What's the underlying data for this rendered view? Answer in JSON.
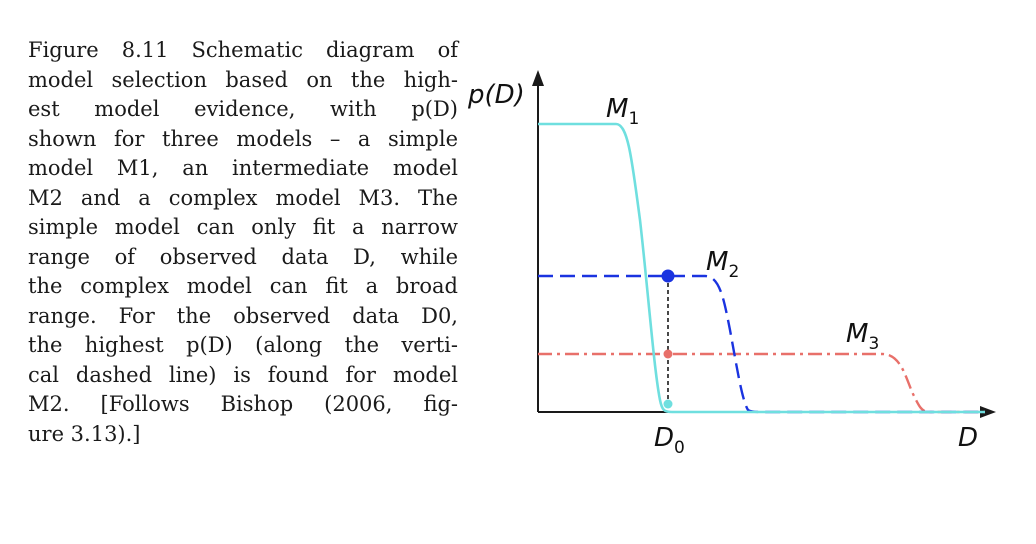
{
  "caption": {
    "lines": [
      "Figure 8.11 Schematic diagram of",
      "model selection based on the high-",
      "est model evidence, with p(D)",
      "shown for three models – a simple",
      "model M1, an intermediate model",
      "M2 and a complex model M3. The",
      "simple model can only fit a narrow",
      "range of observed data D, while",
      "the complex model can fit a broad",
      "range. For the observed data D0,",
      "the highest p(D) (along the verti-",
      "cal dashed line) is found for model",
      "M2. [Follows Bishop (2006, fig-",
      "ure 3.13).]"
    ]
  },
  "diagram": {
    "y_axis_label": "p(D)",
    "x_axis_label": "D",
    "x_marker_label": "D",
    "x_marker_subscript": "0",
    "models": [
      {
        "name": "M",
        "subscript": "1",
        "color": "#6fdfdf",
        "style": "solid"
      },
      {
        "name": "M",
        "subscript": "2",
        "color": "#1a33e0",
        "style": "dashed"
      },
      {
        "name": "M",
        "subscript": "3",
        "color": "#e8706a",
        "style": "dash-dot"
      }
    ],
    "point_colors": {
      "m1": "#6fdfdf",
      "m2": "#1a33e0",
      "m3": "#e8706a"
    },
    "axis_color": "#1a1a1a"
  }
}
